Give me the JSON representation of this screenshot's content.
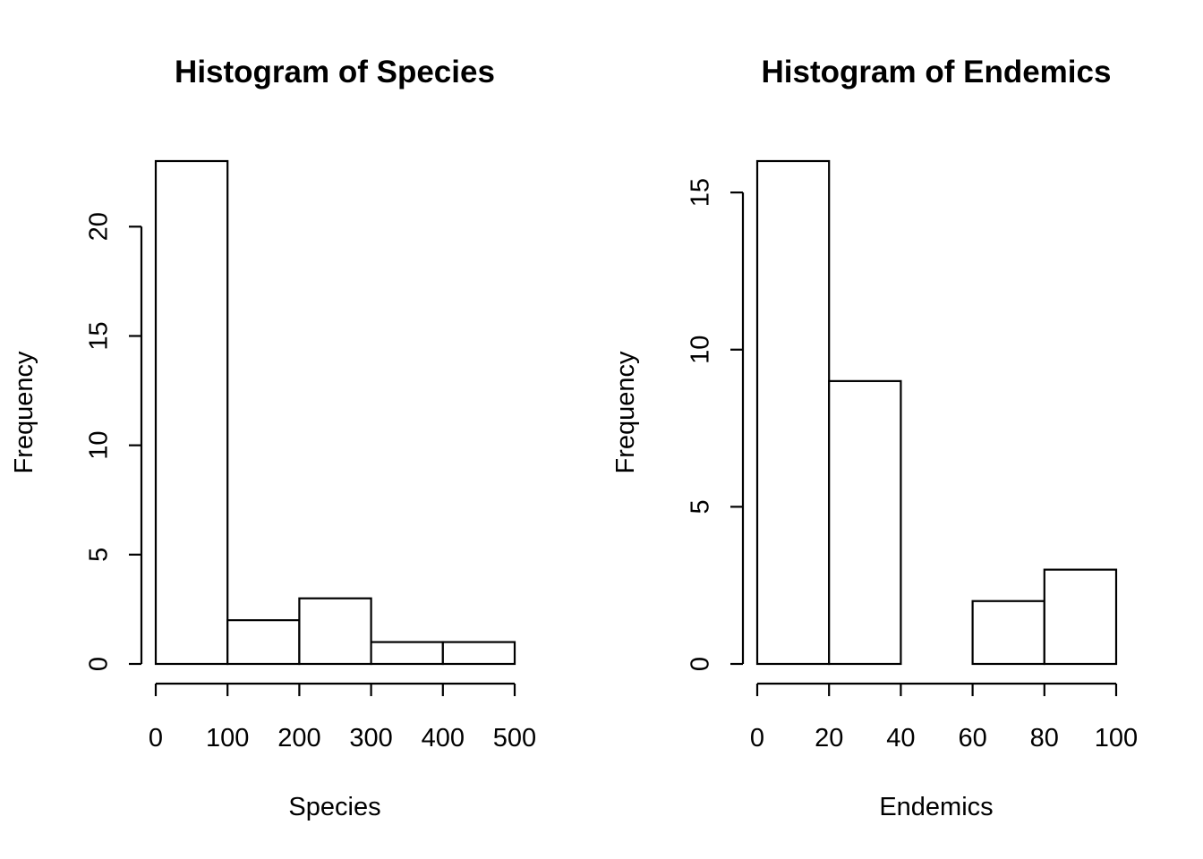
{
  "chart_data": [
    {
      "type": "bar",
      "title": "Histogram of Species",
      "xlabel": "Species",
      "ylabel": "Frequency",
      "bins": [
        [
          0,
          100
        ],
        [
          100,
          200
        ],
        [
          200,
          300
        ],
        [
          300,
          400
        ],
        [
          400,
          500
        ]
      ],
      "values": [
        23,
        2,
        3,
        1,
        1
      ],
      "xlim": [
        0,
        500
      ],
      "ylim": [
        0,
        23
      ],
      "xticks": [
        0,
        100,
        200,
        300,
        400,
        500
      ],
      "yticks": [
        0,
        5,
        10,
        15,
        20
      ],
      "grid": false
    },
    {
      "type": "bar",
      "title": "Histogram of Endemics",
      "xlabel": "Endemics",
      "ylabel": "Frequency",
      "bins": [
        [
          0,
          20
        ],
        [
          20,
          40
        ],
        [
          40,
          60
        ],
        [
          60,
          80
        ],
        [
          80,
          100
        ]
      ],
      "values": [
        16,
        9,
        0,
        2,
        3
      ],
      "xlim": [
        0,
        100
      ],
      "ylim": [
        0,
        16
      ],
      "xticks": [
        0,
        20,
        40,
        60,
        80,
        100
      ],
      "yticks": [
        0,
        5,
        10,
        15
      ],
      "grid": false
    }
  ]
}
